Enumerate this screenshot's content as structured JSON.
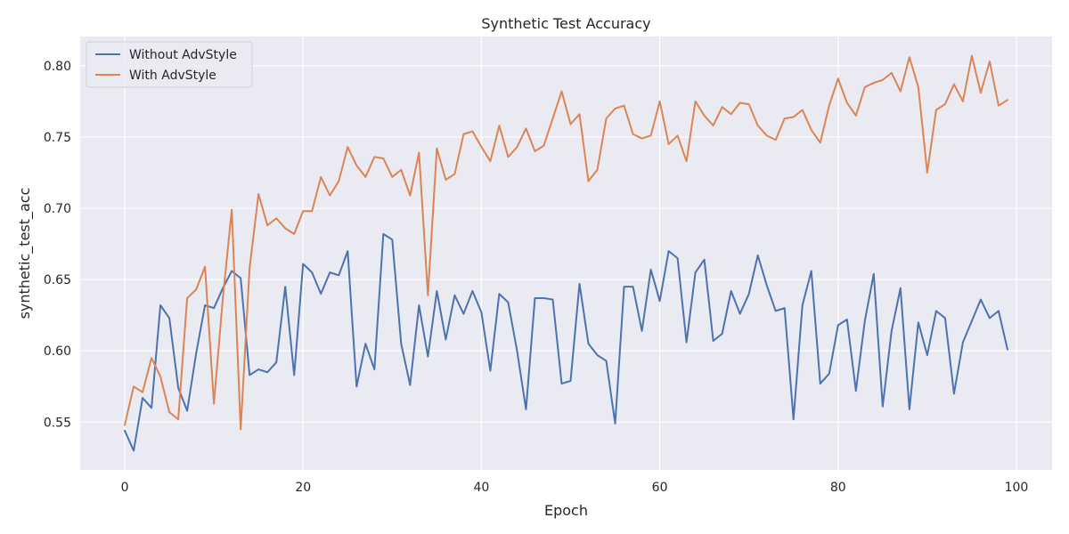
{
  "chart_data": {
    "type": "line",
    "title": "Synthetic Test Accuracy",
    "xlabel": "Epoch",
    "ylabel": "synthetic_test_acc",
    "xlim": [
      -5,
      104
    ],
    "ylim": [
      0.5165,
      0.8205
    ],
    "x_ticks": [
      0,
      20,
      40,
      60,
      80,
      100
    ],
    "y_ticks": [
      0.55,
      0.6,
      0.65,
      0.7,
      0.75,
      0.8
    ],
    "x_tick_labels": [
      "0",
      "20",
      "40",
      "60",
      "80",
      "100"
    ],
    "y_tick_labels": [
      "0.55",
      "0.60",
      "0.65",
      "0.70",
      "0.75",
      "0.80"
    ],
    "grid": true,
    "legend_position": "top-left",
    "series": [
      {
        "name": "Without AdvStyle",
        "color": "#4c72b0",
        "values": [
          0.544,
          0.53,
          0.567,
          0.56,
          0.632,
          0.623,
          0.574,
          0.558,
          0.598,
          0.632,
          0.63,
          0.644,
          0.656,
          0.651,
          0.583,
          0.587,
          0.585,
          0.592,
          0.645,
          0.583,
          0.661,
          0.655,
          0.64,
          0.655,
          0.653,
          0.67,
          0.575,
          0.605,
          0.587,
          0.682,
          0.678,
          0.605,
          0.576,
          0.632,
          0.596,
          0.642,
          0.608,
          0.639,
          0.626,
          0.642,
          0.627,
          0.586,
          0.64,
          0.634,
          0.6,
          0.559,
          0.637,
          0.637,
          0.636,
          0.577,
          0.579,
          0.647,
          0.605,
          0.597,
          0.593,
          0.549,
          0.645,
          0.645,
          0.614,
          0.657,
          0.635,
          0.67,
          0.665,
          0.606,
          0.655,
          0.664,
          0.607,
          0.612,
          0.642,
          0.626,
          0.64,
          0.667,
          0.646,
          0.628,
          0.63,
          0.552,
          0.632,
          0.656,
          0.577,
          0.584,
          0.618,
          0.622,
          0.572,
          0.621,
          0.654,
          0.561,
          0.614,
          0.644,
          0.559,
          0.62,
          0.597,
          0.628,
          0.623,
          0.57,
          0.606,
          0.621,
          0.636,
          0.623,
          0.628,
          0.601
        ]
      },
      {
        "name": "With AdvStyle",
        "color": "#dd8452",
        "values": [
          0.548,
          0.575,
          0.571,
          0.595,
          0.582,
          0.557,
          0.552,
          0.637,
          0.643,
          0.659,
          0.563,
          0.637,
          0.699,
          0.545,
          0.658,
          0.71,
          0.688,
          0.693,
          0.686,
          0.682,
          0.698,
          0.698,
          0.722,
          0.709,
          0.719,
          0.743,
          0.73,
          0.722,
          0.736,
          0.735,
          0.722,
          0.727,
          0.709,
          0.739,
          0.639,
          0.742,
          0.72,
          0.724,
          0.752,
          0.754,
          0.743,
          0.733,
          0.758,
          0.736,
          0.743,
          0.756,
          0.74,
          0.744,
          0.763,
          0.782,
          0.759,
          0.766,
          0.719,
          0.727,
          0.763,
          0.77,
          0.772,
          0.752,
          0.749,
          0.751,
          0.775,
          0.745,
          0.751,
          0.733,
          0.775,
          0.765,
          0.758,
          0.771,
          0.766,
          0.774,
          0.773,
          0.758,
          0.751,
          0.748,
          0.763,
          0.764,
          0.769,
          0.755,
          0.746,
          0.772,
          0.791,
          0.774,
          0.765,
          0.785,
          0.788,
          0.79,
          0.795,
          0.782,
          0.806,
          0.785,
          0.725,
          0.769,
          0.773,
          0.787,
          0.775,
          0.807,
          0.781,
          0.803,
          0.772,
          0.776
        ]
      }
    ]
  }
}
